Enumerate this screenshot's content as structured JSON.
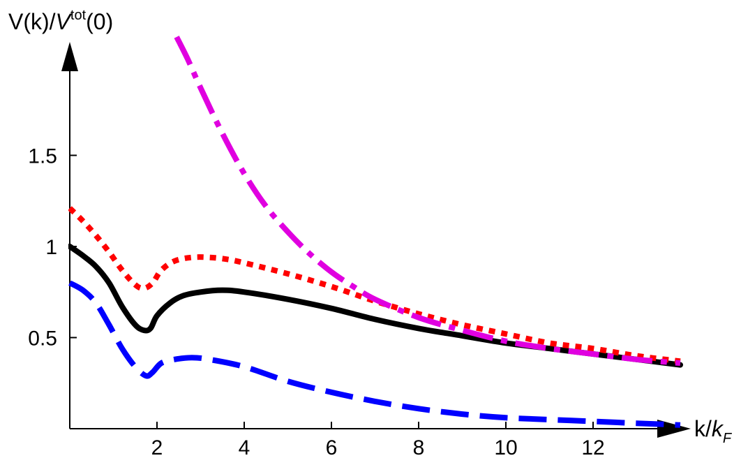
{
  "chart_data": {
    "type": "line",
    "ylabel": {
      "main": "V(k)/",
      "italic": "V",
      "sup": "tot",
      "tail": "(0)"
    },
    "xlabel": {
      "main": "k/",
      "italic": "k",
      "sub": "F"
    },
    "xlim": [
      0,
      14
    ],
    "ylim": [
      0,
      2
    ],
    "x_ticks": [
      {
        "value": 2,
        "label": "2"
      },
      {
        "value": 4,
        "label": "4"
      },
      {
        "value": 6,
        "label": "6"
      },
      {
        "value": 8,
        "label": "8"
      },
      {
        "value": 10,
        "label": "10"
      },
      {
        "value": 12,
        "label": "12"
      }
    ],
    "y_ticks": [
      {
        "value": 0.5,
        "label": "0.5"
      },
      {
        "value": 1,
        "label": "1"
      },
      {
        "value": 1.5,
        "label": "1.5"
      }
    ],
    "series": [
      {
        "color": "#000000",
        "style": "solid",
        "x": [
          0,
          0.3,
          0.6,
          0.9,
          1.2,
          1.5,
          1.7,
          1.85,
          2.0,
          2.3,
          2.6,
          3.0,
          3.5,
          4.0,
          5.0,
          6.0,
          7.0,
          8.0,
          9.0,
          10.0,
          11.0,
          12.0,
          13.0,
          14.0
        ],
        "y": [
          1.0,
          0.95,
          0.89,
          0.8,
          0.67,
          0.57,
          0.54,
          0.55,
          0.62,
          0.69,
          0.73,
          0.75,
          0.76,
          0.75,
          0.71,
          0.66,
          0.6,
          0.55,
          0.51,
          0.47,
          0.44,
          0.41,
          0.38,
          0.35
        ]
      },
      {
        "color": "#ff0000",
        "style": "dotted",
        "x": [
          0,
          0.3,
          0.6,
          0.9,
          1.2,
          1.5,
          1.7,
          1.9,
          2.1,
          2.4,
          2.8,
          3.2,
          3.6,
          4.0,
          5.0,
          6.0,
          7.0,
          8.0,
          9.0,
          10.0,
          11.0,
          12.0,
          13.0,
          14.0
        ],
        "y": [
          1.21,
          1.14,
          1.06,
          0.97,
          0.87,
          0.79,
          0.77,
          0.8,
          0.87,
          0.92,
          0.94,
          0.94,
          0.93,
          0.91,
          0.85,
          0.78,
          0.7,
          0.63,
          0.57,
          0.52,
          0.47,
          0.44,
          0.4,
          0.37
        ]
      },
      {
        "color": "#0000ff",
        "style": "dashed",
        "x": [
          0,
          0.3,
          0.6,
          0.9,
          1.2,
          1.5,
          1.75,
          1.9,
          2.1,
          2.4,
          2.8,
          3.2,
          4.0,
          5.0,
          6.0,
          7.0,
          8.0,
          9.0,
          10.0,
          11.0,
          12.0,
          13.0,
          14.0
        ],
        "y": [
          0.8,
          0.76,
          0.69,
          0.57,
          0.44,
          0.34,
          0.29,
          0.31,
          0.36,
          0.38,
          0.39,
          0.38,
          0.34,
          0.26,
          0.2,
          0.15,
          0.11,
          0.08,
          0.06,
          0.05,
          0.04,
          0.03,
          0.02
        ]
      },
      {
        "color": "#e000e0",
        "style": "dashdot",
        "x": [
          2.45,
          2.7,
          3.0,
          3.5,
          4.0,
          4.5,
          5.0,
          5.5,
          6.0,
          6.5,
          7.0,
          8.0,
          9.0,
          10.0,
          11.0,
          12.0,
          13.0,
          14.0
        ],
        "y": [
          2.15,
          2.03,
          1.87,
          1.62,
          1.4,
          1.22,
          1.08,
          0.96,
          0.86,
          0.78,
          0.71,
          0.61,
          0.54,
          0.48,
          0.44,
          0.41,
          0.38,
          0.36
        ]
      }
    ]
  }
}
